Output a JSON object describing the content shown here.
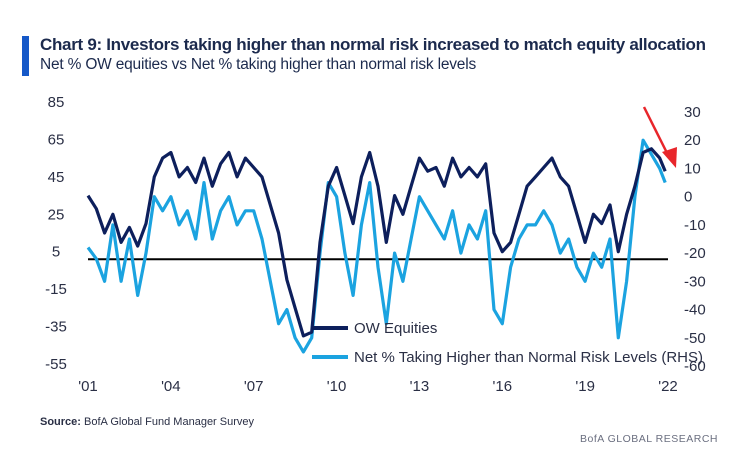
{
  "header": {
    "title": "Chart 9: Investors taking higher than normal risk increased to match equity allocation",
    "subtitle": "Net % OW equities vs Net % taking higher than normal risk levels"
  },
  "footer": {
    "source_label": "Source:",
    "source_text": "BofA Global Fund Manager Survey",
    "branding": "BofA GLOBAL RESEARCH"
  },
  "colors": {
    "accent": "#1558c8",
    "ow_equities": "#0d1f5c",
    "risk_levels": "#1ba3e0",
    "arrow": "#e8262b",
    "zero_line": "#000000"
  },
  "chart_data": {
    "type": "line",
    "x_ticks": [
      "'01",
      "'04",
      "'07",
      "'10",
      "'13",
      "'16",
      "'19",
      "'22"
    ],
    "xlim": [
      2001.0,
      2022.0
    ],
    "ylim_left": [
      -55,
      85
    ],
    "ylim_right": [
      -60,
      30
    ],
    "y_ticks_left": [
      "85",
      "65",
      "45",
      "25",
      "5",
      "-15",
      "-35",
      "-55"
    ],
    "y_ticks_right": [
      "30",
      "20",
      "10",
      "0",
      "-10",
      "-20",
      "-30",
      "-40",
      "-50",
      "-60"
    ],
    "reference_line_left": 1,
    "annotation": "red arrow pointing down at latest values",
    "series": [
      {
        "name": "OW Equities",
        "axis": "left",
        "x": [
          2001.0,
          2001.3,
          2001.6,
          2001.9,
          2002.2,
          2002.5,
          2002.8,
          2003.1,
          2003.4,
          2003.7,
          2004.0,
          2004.3,
          2004.6,
          2004.9,
          2005.2,
          2005.5,
          2005.8,
          2006.1,
          2006.4,
          2006.7,
          2007.0,
          2007.3,
          2007.6,
          2007.9,
          2008.2,
          2008.5,
          2008.8,
          2009.1,
          2009.4,
          2009.7,
          2010.0,
          2010.3,
          2010.6,
          2010.9,
          2011.2,
          2011.5,
          2011.8,
          2012.1,
          2012.4,
          2012.7,
          2013.0,
          2013.3,
          2013.6,
          2013.9,
          2014.2,
          2014.5,
          2014.8,
          2015.1,
          2015.4,
          2015.7,
          2016.0,
          2016.3,
          2016.6,
          2016.9,
          2017.2,
          2017.5,
          2017.8,
          2018.1,
          2018.4,
          2018.7,
          2019.0,
          2019.3,
          2019.6,
          2019.9,
          2020.2,
          2020.5,
          2020.8,
          2021.1,
          2021.4,
          2021.7,
          2021.9
        ],
        "values": [
          35,
          28,
          15,
          25,
          10,
          18,
          8,
          20,
          45,
          55,
          58,
          45,
          50,
          42,
          55,
          40,
          52,
          58,
          45,
          55,
          50,
          45,
          30,
          15,
          -10,
          -25,
          -40,
          -38,
          10,
          40,
          50,
          35,
          20,
          45,
          58,
          40,
          10,
          35,
          25,
          40,
          55,
          48,
          50,
          40,
          55,
          45,
          50,
          45,
          52,
          15,
          5,
          10,
          25,
          40,
          45,
          50,
          55,
          45,
          40,
          25,
          10,
          25,
          20,
          30,
          5,
          25,
          40,
          58,
          60,
          55,
          48
        ]
      },
      {
        "name": "Net % Taking Higher than Normal Risk Levels (RHS)",
        "axis": "right",
        "x": [
          2001.0,
          2001.3,
          2001.6,
          2001.9,
          2002.2,
          2002.5,
          2002.8,
          2003.1,
          2003.4,
          2003.7,
          2004.0,
          2004.3,
          2004.6,
          2004.9,
          2005.2,
          2005.5,
          2005.8,
          2006.1,
          2006.4,
          2006.7,
          2007.0,
          2007.3,
          2007.6,
          2007.9,
          2008.2,
          2008.5,
          2008.8,
          2009.1,
          2009.4,
          2009.7,
          2010.0,
          2010.3,
          2010.6,
          2010.9,
          2011.2,
          2011.5,
          2011.8,
          2012.1,
          2012.4,
          2012.7,
          2013.0,
          2013.3,
          2013.6,
          2013.9,
          2014.2,
          2014.5,
          2014.8,
          2015.1,
          2015.4,
          2015.7,
          2016.0,
          2016.3,
          2016.6,
          2016.9,
          2017.2,
          2017.5,
          2017.8,
          2018.1,
          2018.4,
          2018.7,
          2019.0,
          2019.3,
          2019.6,
          2019.9,
          2020.2,
          2020.5,
          2020.8,
          2021.1,
          2021.4,
          2021.7,
          2021.9
        ],
        "values": [
          -18,
          -22,
          -30,
          -10,
          -30,
          -15,
          -35,
          -20,
          0,
          -5,
          0,
          -10,
          -5,
          -15,
          5,
          -15,
          -5,
          0,
          -10,
          -5,
          -5,
          -15,
          -30,
          -45,
          -40,
          -50,
          -55,
          -50,
          -20,
          5,
          0,
          -20,
          -35,
          -10,
          5,
          -25,
          -45,
          -20,
          -30,
          -15,
          0,
          -5,
          -10,
          -15,
          -5,
          -20,
          -10,
          -15,
          -5,
          -40,
          -45,
          -25,
          -15,
          -10,
          -10,
          -5,
          -10,
          -20,
          -15,
          -25,
          -30,
          -20,
          -25,
          -15,
          -50,
          -30,
          0,
          20,
          15,
          10,
          5
        ]
      }
    ]
  }
}
